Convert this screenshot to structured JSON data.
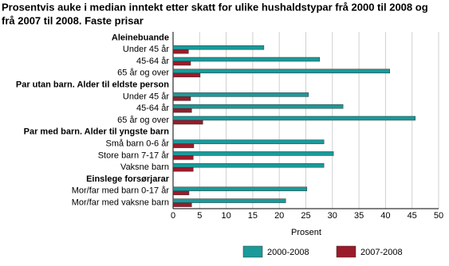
{
  "chart_data": {
    "type": "bar",
    "orientation": "horizontal",
    "title": [
      "Prosentvis auke i median inntekt etter skatt for ulike hushaldstypar frå 2000 til 2008 og",
      "frå 2007 til 2008. Faste prisar"
    ],
    "x_label": "Prosent",
    "categories": [
      "Aleinebuande",
      "Under 45 år",
      "45-64 år",
      "65 år og over",
      "Par utan barn. Alder til eldste person",
      "Under 45 år",
      "45-64 år",
      "65 år og over",
      "Par med barn. Alder til yngste barn",
      "Små barn 0-6 år",
      "Store barn 7-17 år",
      "Vaksne barn",
      "Einslege forsørjarar",
      "Mor/far med barn 0-17 år",
      "Mor/far med vaksne barn"
    ],
    "series": [
      {
        "name": "2000-2008",
        "color": "#1a9a9a",
        "values": [
          null,
          17.1,
          27.6,
          40.8,
          null,
          25.5,
          32.0,
          45.6,
          null,
          28.4,
          30.2,
          28.4,
          null,
          25.2,
          21.2
        ]
      },
      {
        "name": "2007-2008",
        "color": "#9b1b2a",
        "values": [
          null,
          2.9,
          3.3,
          5.1,
          null,
          3.3,
          3.5,
          5.6,
          null,
          3.9,
          3.8,
          3.8,
          null,
          3.0,
          3.5
        ]
      }
    ],
    "xlim": [
      0,
      50
    ],
    "xticks": [
      0,
      5,
      10,
      15,
      20,
      25,
      30,
      35,
      40,
      45,
      50
    ],
    "grid": true,
    "legend": "bottom"
  }
}
